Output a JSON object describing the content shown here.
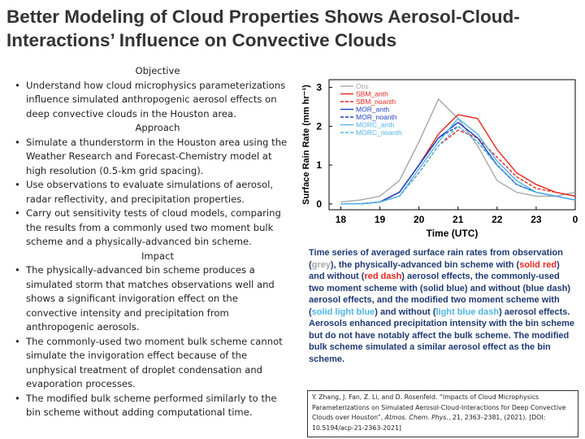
{
  "title": "Better Modeling of Cloud Properties Shows Aerosol-Cloud-Interactions’ Influence on Convective Clouds",
  "sections": [
    {
      "heading": "Objective",
      "bullets": [
        "Understand how cloud microphysics parameterizations influence simulated anthropogenic aerosol effects on deep convective clouds in the Houston area."
      ]
    },
    {
      "heading": "Approach",
      "bullets": [
        "Simulate a thunderstorm in the Houston area using the Weather Research and Forecast-Chemistry model at high resolution (0.5-km grid spacing).",
        "Use observations to evaluate simulations of aerosol, radar reflectivity, and precipitation properties.",
        "Carry out sensitivity tests of cloud models, comparing the results from a commonly used two moment bulk scheme and a physically-advanced bin scheme."
      ]
    },
    {
      "heading": "Impact",
      "bullets": [
        "The physically-advanced bin scheme produces a simulated storm that matches observations well and shows a significant invigoration effect on the convective intensity and precipitation from anthropogenic aerosols.",
        "The commonly-used two moment bulk scheme cannot simulate the invigoration effect because of the unphysical treatment of droplet condensation and evaporation processes.",
        "The modified bulk scheme performed similarly to the bin scheme without adding computational time."
      ]
    }
  ],
  "figure": {
    "type": "line",
    "xlabel": "Time (UTC)",
    "ylabel": "Surface Rain Rate (mm hr⁻¹)",
    "x": [
      18,
      18.5,
      19,
      19.5,
      20,
      20.5,
      21,
      21.5,
      22,
      22.5,
      23,
      23.5,
      24
    ],
    "xlim": [
      17.7,
      24
    ],
    "ylim": [
      -0.15,
      3.2
    ],
    "xticks": [
      18,
      19,
      20,
      21,
      22,
      23,
      {
        "value": 24,
        "label": "0"
      }
    ],
    "yticks": [
      0,
      1,
      2,
      3
    ],
    "series": [
      {
        "name": "Obs",
        "color": "#a6a6a6",
        "dash": false,
        "values": [
          0.05,
          0.1,
          0.2,
          0.6,
          1.6,
          2.7,
          2.2,
          1.5,
          0.6,
          0.3,
          0.2,
          0.2,
          0.3
        ]
      },
      {
        "name": "SBM_anth",
        "color": "#e8251f",
        "dash": false,
        "values": [
          0,
          0,
          0.05,
          0.3,
          1.0,
          1.8,
          2.3,
          2.2,
          1.4,
          0.8,
          0.5,
          0.3,
          0.2
        ]
      },
      {
        "name": "SBM_noanth",
        "color": "#e8251f",
        "dash": true,
        "values": [
          0,
          0,
          0.05,
          0.2,
          0.8,
          1.5,
          1.9,
          1.7,
          1.2,
          0.7,
          0.4,
          0.3,
          0.2
        ]
      },
      {
        "name": "MOR_anth",
        "color": "#1f3fbf",
        "dash": false,
        "values": [
          0,
          0,
          0.05,
          0.3,
          1.0,
          1.7,
          2.1,
          1.7,
          1.0,
          0.5,
          0.3,
          0.2,
          0.1
        ]
      },
      {
        "name": "MOR_noanth",
        "color": "#1f3fbf",
        "dash": true,
        "values": [
          0,
          0,
          0.05,
          0.3,
          1.0,
          1.7,
          2.0,
          1.6,
          1.0,
          0.5,
          0.3,
          0.2,
          0.1
        ]
      },
      {
        "name": "MORC_anth",
        "color": "#4fb3e8",
        "dash": false,
        "values": [
          0,
          0,
          0.05,
          0.2,
          0.9,
          1.6,
          2.2,
          1.8,
          1.1,
          0.6,
          0.3,
          0.2,
          0.1
        ]
      },
      {
        "name": "MORC_noanth",
        "color": "#4fb3e8",
        "dash": true,
        "values": [
          0,
          0,
          0.05,
          0.2,
          0.8,
          1.5,
          2.0,
          1.6,
          1.0,
          0.5,
          0.3,
          0.2,
          0.1
        ]
      }
    ]
  },
  "caption": {
    "segments": [
      {
        "text": "Time series of averaged surface rain rates from observation ("
      },
      {
        "text": "grey",
        "color": "#a6a6a6"
      },
      {
        "text": "), the physically-advanced bin scheme with ("
      },
      {
        "text": "solid red",
        "color": "#e8251f"
      },
      {
        "text": ") and without ("
      },
      {
        "text": "red dash",
        "color": "#e8251f"
      },
      {
        "text": ") aerosol effects, the commonly-used two moment scheme with (solid blue) and without (blue dash) aerosol effects, and the modified two moment scheme with ("
      },
      {
        "text": "solid light blue",
        "color": "#4fb3e8"
      },
      {
        "text": ") and without ("
      },
      {
        "text": "light blue dash",
        "color": "#4fb3e8"
      },
      {
        "text": ") aerosol effects. Aerosols enhanced precipitation intensity with the bin scheme but do not have notably affect the bulk scheme. The modified bulk scheme simulated a similar aerosol effect as the bin scheme."
      }
    ]
  },
  "reference": {
    "before": "Y. Zhang, J. Fan, Z. Li, and D. Rosenfeld. “Impacts of Cloud Microphysics Parameterizations on Simulated Aerosol-Cloud-Interactions for Deep Convective Clouds over Houston”, ",
    "journal": "Atmos. Chem. Phys.",
    "after": ", 21, 2363–2381, (2021). [DOI: 10.5194/acp-21-2363-2021]"
  }
}
